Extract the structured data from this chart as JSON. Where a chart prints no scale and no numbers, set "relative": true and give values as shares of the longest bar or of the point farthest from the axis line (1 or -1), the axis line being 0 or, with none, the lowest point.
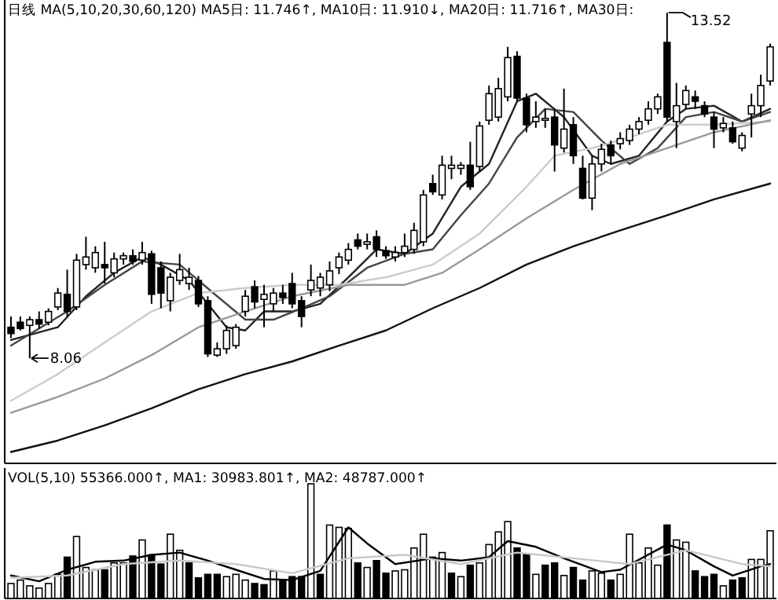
{
  "chart_data": [
    {
      "type": "candlestick",
      "categories": [
        null,
        null,
        null,
        null,
        null,
        null,
        null,
        null,
        null,
        null,
        null,
        null,
        null,
        null,
        null,
        null,
        null,
        null,
        null,
        null,
        null,
        null,
        null,
        null,
        null,
        null,
        null,
        null,
        null,
        null,
        null,
        null,
        null,
        null,
        null,
        null,
        null,
        null,
        null,
        null,
        null,
        null,
        null,
        null,
        null,
        null,
        null,
        null,
        null,
        null,
        null,
        null,
        null,
        null,
        null,
        null,
        null,
        null,
        null,
        null,
        null,
        null,
        null,
        null,
        null,
        null,
        null,
        null,
        null,
        null,
        null,
        null,
        null,
        null,
        null,
        null,
        null,
        null,
        null,
        null,
        null,
        null
      ],
      "ohlc": [
        [
          8.55,
          8.72,
          8.38,
          8.45
        ],
        [
          8.63,
          8.72,
          8.5,
          8.53
        ],
        [
          8.58,
          8.72,
          8.06,
          8.67
        ],
        [
          8.67,
          8.8,
          8.53,
          8.6
        ],
        [
          8.63,
          8.85,
          8.58,
          8.8
        ],
        [
          8.87,
          9.17,
          8.82,
          9.09
        ],
        [
          9.07,
          9.46,
          8.72,
          8.8
        ],
        [
          8.87,
          9.71,
          8.82,
          9.61
        ],
        [
          9.54,
          9.98,
          9.46,
          9.66
        ],
        [
          9.49,
          9.83,
          9.41,
          9.73
        ],
        [
          9.54,
          9.9,
          9.24,
          9.49
        ],
        [
          9.41,
          9.73,
          9.34,
          9.63
        ],
        [
          9.63,
          9.73,
          9.54,
          9.68
        ],
        [
          9.68,
          9.78,
          9.54,
          9.59
        ],
        [
          9.61,
          9.9,
          9.54,
          9.73
        ],
        [
          9.71,
          9.76,
          8.92,
          9.07
        ],
        [
          9.49,
          9.59,
          8.85,
          9.09
        ],
        [
          8.97,
          9.41,
          8.8,
          9.34
        ],
        [
          9.29,
          9.71,
          9.22,
          9.46
        ],
        [
          9.24,
          9.49,
          9.14,
          9.34
        ],
        [
          9.29,
          9.36,
          8.87,
          8.92
        ],
        [
          8.97,
          9.04,
          8.08,
          8.13
        ],
        [
          8.11,
          8.31,
          8.08,
          8.21
        ],
        [
          8.21,
          8.58,
          8.13,
          8.5
        ],
        [
          8.26,
          8.6,
          8.21,
          8.55
        ],
        [
          8.8,
          9.14,
          8.72,
          9.04
        ],
        [
          9.19,
          9.29,
          8.85,
          8.95
        ],
        [
          8.99,
          9.22,
          8.55,
          9.07
        ],
        [
          8.92,
          9.17,
          8.8,
          9.09
        ],
        [
          9.09,
          9.22,
          8.92,
          9.02
        ],
        [
          9.24,
          9.41,
          8.85,
          8.92
        ],
        [
          8.97,
          9.04,
          8.55,
          8.72
        ],
        [
          9.14,
          9.54,
          9.04,
          9.29
        ],
        [
          9.17,
          9.41,
          9.04,
          9.34
        ],
        [
          9.22,
          9.59,
          9.12,
          9.44
        ],
        [
          9.49,
          9.73,
          9.39,
          9.66
        ],
        [
          9.61,
          9.88,
          9.54,
          9.78
        ],
        [
          9.93,
          10.03,
          9.78,
          9.83
        ],
        [
          9.86,
          10.03,
          9.78,
          9.9
        ],
        [
          9.98,
          10.08,
          9.66,
          9.78
        ],
        [
          9.76,
          9.83,
          9.63,
          9.68
        ],
        [
          9.66,
          9.83,
          9.59,
          9.73
        ],
        [
          9.73,
          10.03,
          9.66,
          9.83
        ],
        [
          9.78,
          10.2,
          9.71,
          10.08
        ],
        [
          9.9,
          10.72,
          9.83,
          10.64
        ],
        [
          10.82,
          10.96,
          10.64,
          10.69
        ],
        [
          10.64,
          11.26,
          10.57,
          11.11
        ],
        [
          11.06,
          11.26,
          10.89,
          11.11
        ],
        [
          11.06,
          11.16,
          10.96,
          11.11
        ],
        [
          11.11,
          11.48,
          10.72,
          10.77
        ],
        [
          11.09,
          11.8,
          11.01,
          11.73
        ],
        [
          11.82,
          12.37,
          11.75,
          12.24
        ],
        [
          11.87,
          12.49,
          11.8,
          12.32
        ],
        [
          12.19,
          12.98,
          12.12,
          12.81
        ],
        [
          12.83,
          12.91,
          12.12,
          12.17
        ],
        [
          12.17,
          12.24,
          11.63,
          11.75
        ],
        [
          11.8,
          12.12,
          11.7,
          11.87
        ],
        [
          11.82,
          12.0,
          11.7,
          11.85
        ],
        [
          11.87,
          12.0,
          11.01,
          11.43
        ],
        [
          11.38,
          12.32,
          11.31,
          11.68
        ],
        [
          11.75,
          11.87,
          11.13,
          11.26
        ],
        [
          11.06,
          11.26,
          10.57,
          10.59
        ],
        [
          10.59,
          11.26,
          10.4,
          11.13
        ],
        [
          11.13,
          11.45,
          11.01,
          11.36
        ],
        [
          11.43,
          11.5,
          11.13,
          11.26
        ],
        [
          11.45,
          11.63,
          11.36,
          11.53
        ],
        [
          11.5,
          11.75,
          11.43,
          11.68
        ],
        [
          11.68,
          11.87,
          11.6,
          11.8
        ],
        [
          11.82,
          12.12,
          11.75,
          12.0
        ],
        [
          12.0,
          12.24,
          11.92,
          12.19
        ],
        [
          13.05,
          13.52,
          11.8,
          11.87
        ],
        [
          11.8,
          12.41,
          11.38,
          12.05
        ],
        [
          12.07,
          12.37,
          12.0,
          12.29
        ],
        [
          12.19,
          12.29,
          12.0,
          12.12
        ],
        [
          12.05,
          12.12,
          11.87,
          11.92
        ],
        [
          11.87,
          11.95,
          11.38,
          11.68
        ],
        [
          11.7,
          11.87,
          11.63,
          11.77
        ],
        [
          11.7,
          11.8,
          11.45,
          11.48
        ],
        [
          11.38,
          11.63,
          11.33,
          11.58
        ],
        [
          11.92,
          12.24,
          11.55,
          12.05
        ],
        [
          12.05,
          12.54,
          11.87,
          12.37
        ],
        [
          12.44,
          13.03,
          12.37,
          12.98
        ]
      ],
      "ylim": [
        6.4,
        13.72
      ],
      "series": [
        {
          "type": "line",
          "color": "#222222",
          "values": [
            8.35,
            null,
            null,
            null,
            null,
            8.55,
            null,
            null,
            9.04,
            null,
            null,
            9.41,
            null,
            null,
            9.66,
            null,
            9.54,
            null,
            null,
            9.29,
            null,
            8.92,
            null,
            8.55,
            null,
            8.5,
            null,
            8.8,
            null,
            null,
            8.8,
            null,
            null,
            8.92,
            null,
            null,
            9.34,
            null,
            null,
            9.78,
            null,
            null,
            9.71,
            null,
            null,
            10.03,
            null,
            null,
            10.77,
            null,
            null,
            11.13,
            null,
            null,
            12.12,
            null,
            12.24,
            null,
            null,
            11.87,
            null,
            null,
            11.26,
            null,
            11.13,
            null,
            null,
            11.26,
            null,
            null,
            11.8,
            null,
            12.0,
            null,
            null,
            12.05,
            null,
            null,
            11.8,
            null,
            null,
            12.0
          ]
        },
        {
          "type": "line",
          "color": "#444444",
          "values": [
            8.26,
            null,
            null,
            null,
            null,
            null,
            8.8,
            null,
            null,
            null,
            9.22,
            null,
            null,
            null,
            9.59,
            null,
            null,
            null,
            9.54,
            null,
            null,
            null,
            9.04,
            null,
            null,
            8.67,
            null,
            null,
            8.67,
            null,
            null,
            8.85,
            null,
            null,
            9.04,
            null,
            null,
            null,
            9.49,
            null,
            null,
            null,
            9.71,
            null,
            null,
            9.78,
            null,
            null,
            10.32,
            null,
            null,
            10.82,
            null,
            null,
            11.55,
            null,
            null,
            12.0,
            null,
            null,
            11.95,
            null,
            null,
            11.5,
            null,
            null,
            11.13,
            null,
            null,
            11.38,
            null,
            null,
            11.87,
            null,
            null,
            11.95,
            null,
            null,
            11.8,
            null,
            null,
            11.95
          ]
        },
        {
          "type": "line",
          "color": "#cccccc",
          "values": [
            7.39,
            null,
            null,
            null,
            null,
            7.81,
            null,
            null,
            null,
            null,
            8.31,
            null,
            null,
            null,
            null,
            8.8,
            null,
            null,
            null,
            null,
            9.09,
            null,
            null,
            null,
            null,
            9.17,
            null,
            null,
            null,
            null,
            9.22,
            null,
            null,
            null,
            null,
            9.22,
            null,
            null,
            null,
            null,
            9.34,
            null,
            null,
            null,
            null,
            9.54,
            null,
            null,
            null,
            null,
            10.03,
            null,
            null,
            null,
            null,
            10.77,
            null,
            null,
            11.26,
            null,
            null,
            null,
            11.38,
            null,
            null,
            null,
            11.55,
            null,
            null,
            null,
            11.75,
            null,
            null,
            null,
            null,
            11.75,
            null,
            null,
            null,
            null,
            null,
            11.8
          ]
        },
        {
          "type": "line",
          "color": "#999999",
          "values": [
            7.2,
            null,
            null,
            null,
            null,
            7.45,
            null,
            null,
            null,
            null,
            7.74,
            null,
            null,
            null,
            null,
            8.11,
            null,
            null,
            null,
            null,
            8.55,
            null,
            null,
            null,
            null,
            8.8,
            null,
            null,
            null,
            null,
            9.04,
            null,
            null,
            null,
            null,
            null,
            9.22,
            null,
            null,
            null,
            null,
            null,
            9.22,
            null,
            null,
            null,
            9.41,
            null,
            null,
            null,
            9.78,
            null,
            null,
            null,
            null,
            10.27,
            null,
            null,
            null,
            null,
            10.72,
            null,
            null,
            null,
            null,
            11.13,
            null,
            null,
            null,
            null,
            11.38,
            null,
            null,
            null,
            null,
            11.63,
            null,
            null,
            null,
            null,
            null,
            11.82
          ]
        },
        {
          "type": "line",
          "color": "#111111",
          "values": [
            6.58,
            null,
            null,
            null,
            null,
            6.76,
            null,
            null,
            null,
            null,
            7.0,
            null,
            null,
            null,
            null,
            7.27,
            null,
            null,
            null,
            null,
            7.57,
            null,
            null,
            null,
            null,
            7.81,
            null,
            null,
            null,
            null,
            8.01,
            null,
            null,
            null,
            null,
            8.26,
            null,
            null,
            null,
            null,
            8.5,
            null,
            null,
            null,
            null,
            8.85,
            null,
            null,
            null,
            null,
            9.17,
            null,
            null,
            null,
            null,
            9.54,
            null,
            null,
            null,
            null,
            9.83,
            null,
            null,
            null,
            null,
            10.08,
            null,
            null,
            null,
            null,
            10.32,
            null,
            null,
            null,
            null,
            10.57,
            null,
            null,
            null,
            null,
            null,
            10.82
          ]
        }
      ],
      "annotations": [
        "日线 MA(5,10,20,30,60,120) MA5日: 11.746↑, MA10日: 11.910↓, MA20日: 11.716↑, MA30日:",
        {
          "text": "8.06",
          "y": 8.06
        },
        "13.52"
      ]
    },
    {
      "type": "bar",
      "relative": true,
      "categories": [
        null,
        null,
        null,
        null,
        null,
        null,
        null,
        null,
        null,
        null,
        null,
        null,
        null,
        null,
        null,
        null,
        null,
        null,
        null,
        null,
        null,
        null,
        null,
        null,
        null,
        null,
        null,
        null,
        null,
        null,
        null,
        null,
        null,
        null,
        null,
        null,
        null,
        null,
        null,
        null,
        null,
        null,
        null,
        null,
        null,
        null,
        null,
        null,
        null,
        null,
        null,
        null,
        null,
        null,
        null,
        null,
        null,
        null,
        null,
        null,
        null,
        null,
        null,
        null,
        null,
        null,
        null,
        null,
        null,
        null,
        null,
        null,
        null,
        null,
        null,
        null,
        null,
        null,
        null,
        null,
        null,
        null
      ],
      "values": [
        0.13,
        0.16,
        0.11,
        0.09,
        0.13,
        0.21,
        0.36,
        0.54,
        0.27,
        0.25,
        0.25,
        0.31,
        0.31,
        0.37,
        0.51,
        0.38,
        0.3,
        0.56,
        0.42,
        0.31,
        0.18,
        0.21,
        0.21,
        0.19,
        0.21,
        0.16,
        0.13,
        0.12,
        0.24,
        0.16,
        0.19,
        0.19,
        1,
        0.21,
        0.64,
        0.62,
        0.61,
        0.31,
        0.27,
        0.33,
        0.22,
        0.24,
        0.25,
        0.44,
        0.56,
        0.36,
        0.4,
        0.22,
        0.19,
        0.29,
        0.31,
        0.47,
        0.58,
        0.67,
        0.44,
        0.39,
        0.21,
        0.29,
        0.31,
        0.2,
        0.27,
        0.16,
        0.24,
        0.22,
        0.16,
        0.21,
        0.56,
        0.31,
        0.44,
        0.29,
        0.64,
        0.51,
        0.49,
        0.24,
        0.19,
        0.21,
        0.11,
        0.16,
        0.18,
        0.34,
        0.34,
        0.59
      ],
      "colors": [
        "#ffffff",
        "#ffffff",
        "#ffffff",
        "#ffffff",
        "#ffffff",
        "#ffffff",
        "#000000",
        "#ffffff",
        "#ffffff",
        "#ffffff",
        "#000000",
        "#ffffff",
        "#ffffff",
        "#000000",
        "#ffffff",
        "#000000",
        "#000000",
        "#ffffff",
        "#ffffff",
        "#000000",
        "#000000",
        "#000000",
        "#000000",
        "#ffffff",
        "#ffffff",
        "#ffffff",
        "#000000",
        "#000000",
        "#ffffff",
        "#000000",
        "#000000",
        "#000000",
        "#ffffff",
        "#000000",
        "#ffffff",
        "#ffffff",
        "#ffffff",
        "#000000",
        "#ffffff",
        "#000000",
        "#000000",
        "#ffffff",
        "#ffffff",
        "#ffffff",
        "#ffffff",
        "#ffffff",
        "#ffffff",
        "#000000",
        "#ffffff",
        "#000000",
        "#ffffff",
        "#ffffff",
        "#ffffff",
        "#ffffff",
        "#000000",
        "#000000",
        "#ffffff",
        "#000000",
        "#000000",
        "#ffffff",
        "#000000",
        "#000000",
        "#ffffff",
        "#ffffff",
        "#000000",
        "#ffffff",
        "#ffffff",
        "#ffffff",
        "#ffffff",
        "#ffffff",
        "#000000",
        "#ffffff",
        "#ffffff",
        "#000000",
        "#000000",
        "#000000",
        "#ffffff",
        "#000000",
        "#000000",
        "#ffffff",
        "#ffffff",
        "#ffffff"
      ],
      "series": [
        {
          "type": "line",
          "color": "#000000",
          "values": [
            0.2,
            null,
            null,
            0.15,
            null,
            null,
            0.25,
            null,
            null,
            0.32,
            null,
            null,
            0.33,
            null,
            null,
            0.38,
            null,
            null,
            0.4,
            null,
            null,
            0.33,
            null,
            null,
            0.25,
            null,
            null,
            0.17,
            null,
            null,
            0.16,
            null,
            null,
            0.24,
            null,
            null,
            0.62,
            null,
            0.48,
            null,
            null,
            0.3,
            null,
            null,
            null,
            0.35,
            null,
            null,
            0.33,
            null,
            null,
            0.36,
            null,
            0.5,
            null,
            null,
            0.45,
            null,
            null,
            0.35,
            null,
            null,
            null,
            0.23,
            null,
            0.25,
            null,
            null,
            null,
            null,
            0.47,
            null,
            0.42,
            null,
            null,
            0.28,
            null,
            0.2,
            null,
            null,
            0.28,
            0.3
          ]
        },
        {
          "type": "line",
          "color": "#c8c8c8",
          "values": [
            0.18,
            null,
            null,
            null,
            null,
            null,
            0.2,
            null,
            null,
            null,
            null,
            null,
            0.3,
            null,
            null,
            null,
            null,
            null,
            0.33,
            null,
            null,
            null,
            null,
            null,
            0.3,
            null,
            null,
            null,
            null,
            null,
            0.22,
            null,
            null,
            null,
            null,
            null,
            0.35,
            null,
            null,
            null,
            null,
            null,
            0.38,
            null,
            null,
            null,
            null,
            null,
            0.3,
            null,
            null,
            null,
            null,
            null,
            0.4,
            null,
            null,
            null,
            null,
            null,
            0.35,
            null,
            null,
            null,
            null,
            null,
            0.3,
            null,
            null,
            null,
            null,
            null,
            0.42,
            null,
            null,
            null,
            null,
            null,
            0.3,
            null,
            null,
            0.28
          ]
        }
      ],
      "annotations": [
        "VOL(5,10) 55366.000↑, MA1: 30983.801↑, MA2: 48787.000↑"
      ]
    }
  ]
}
